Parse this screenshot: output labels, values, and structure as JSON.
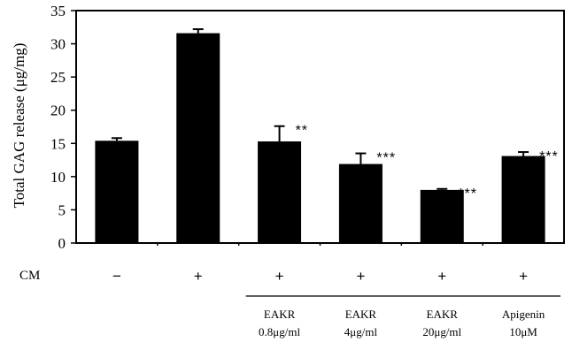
{
  "chart_data": {
    "type": "bar",
    "title": "",
    "xlabel": "",
    "ylabel": "Total GAG release (μg/mg)",
    "ylim": [
      0,
      35
    ],
    "yticks": [
      0,
      5,
      10,
      15,
      20,
      25,
      30,
      35
    ],
    "grid": false,
    "legend": "none",
    "bar_color": "#000000",
    "values": [
      15.4,
      31.6,
      15.3,
      11.9,
      8.0,
      13.1
    ],
    "errors": [
      0.4,
      0.6,
      2.3,
      1.6,
      0.15,
      0.6
    ],
    "significance": [
      "",
      "",
      "**",
      "***",
      "***",
      "***"
    ],
    "cm": {
      "label": "CM",
      "signs": [
        "−",
        "+",
        "+",
        "+",
        "+",
        "+"
      ]
    },
    "treatments": [
      {
        "name": "",
        "dose": ""
      },
      {
        "name": "",
        "dose": ""
      },
      {
        "name": "EAKR",
        "dose": "0.8μg/ml"
      },
      {
        "name": "EAKR",
        "dose": "4μg/ml"
      },
      {
        "name": "EAKR",
        "dose": "20μg/ml"
      },
      {
        "name": "Apigenin",
        "dose": "10μM"
      }
    ]
  }
}
